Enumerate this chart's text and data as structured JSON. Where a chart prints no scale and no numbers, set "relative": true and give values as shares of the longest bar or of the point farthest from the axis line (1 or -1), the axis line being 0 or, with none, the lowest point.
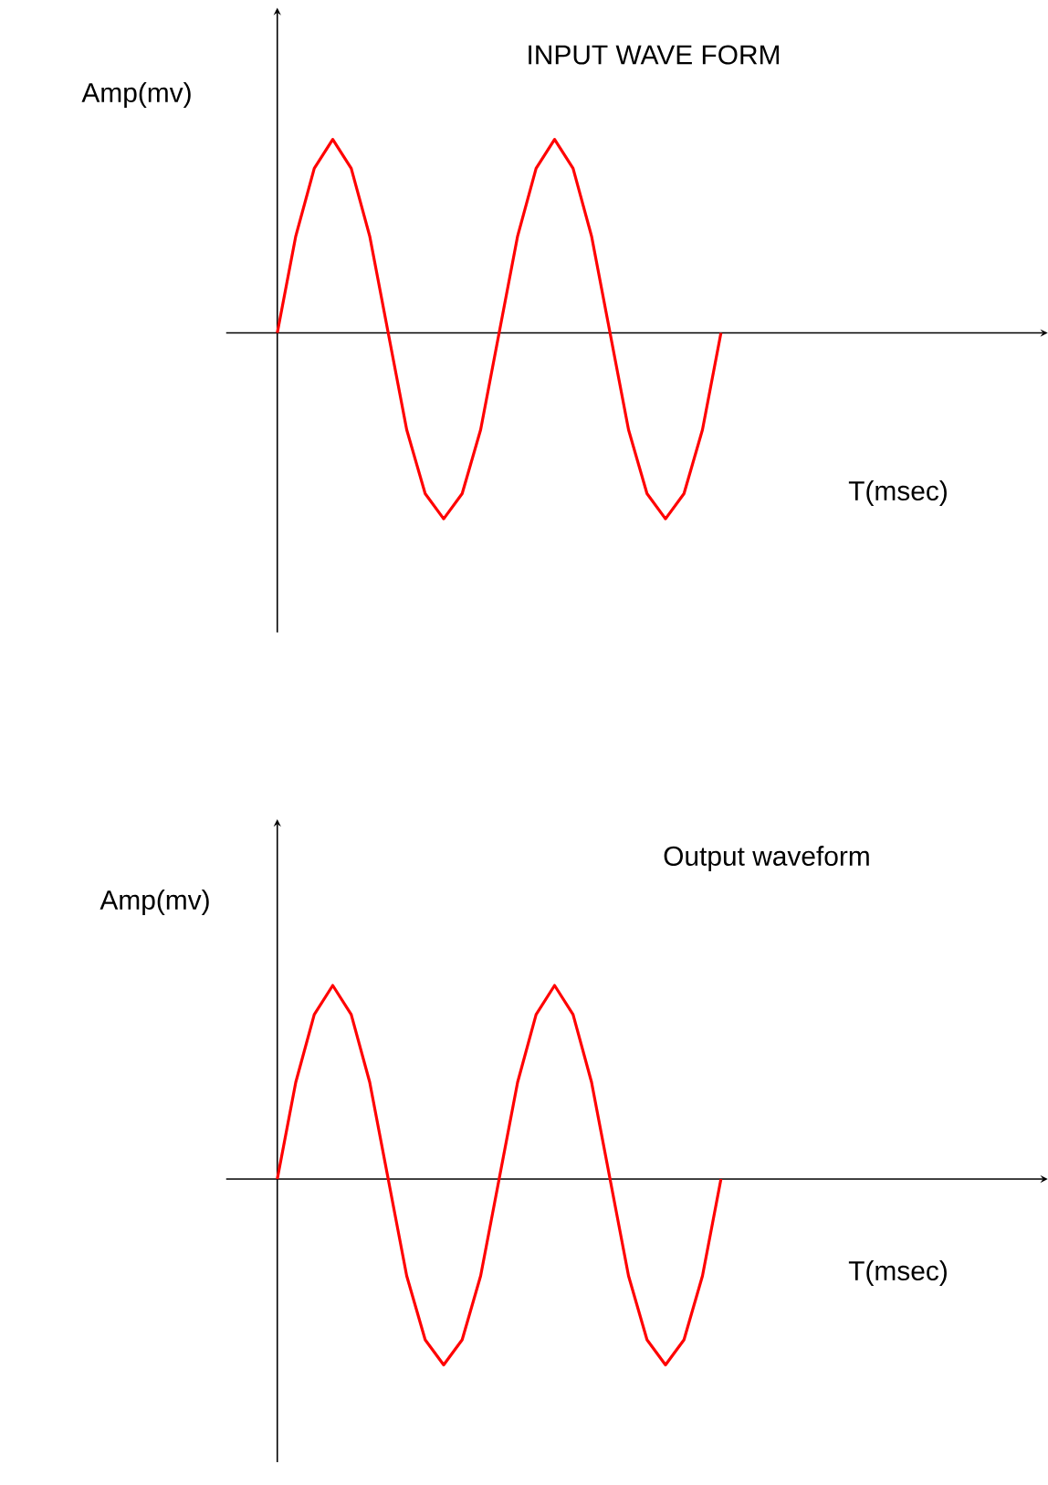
{
  "chart_data": [
    {
      "type": "line",
      "title": "INPUT WAVE FORM",
      "xlabel": "T(msec)",
      "ylabel": "Amp(mv)",
      "relative": true,
      "color": "#ff0000",
      "categories": [
        null,
        null,
        null,
        null,
        null,
        null,
        null,
        null,
        null,
        null,
        null,
        null,
        null,
        null,
        null,
        null,
        null,
        null,
        null,
        null,
        null,
        null,
        null,
        null,
        null
      ],
      "values": [
        0,
        0.5,
        0.85,
        1,
        0.85,
        0.5,
        0,
        -0.5,
        -0.83,
        -0.96,
        -0.83,
        -0.5,
        0,
        0.5,
        0.85,
        1,
        0.85,
        0.5,
        0,
        -0.5,
        -0.83,
        -0.96,
        -0.83,
        -0.5,
        0
      ]
    },
    {
      "type": "line",
      "title": "Output waveform",
      "xlabel": "T(msec)",
      "ylabel": "Amp(mv)",
      "relative": true,
      "color": "#ff0000",
      "categories": [
        null,
        null,
        null,
        null,
        null,
        null,
        null,
        null,
        null,
        null,
        null,
        null,
        null,
        null,
        null,
        null,
        null,
        null,
        null,
        null,
        null,
        null,
        null,
        null,
        null
      ],
      "values": [
        0,
        0.5,
        0.85,
        1,
        0.85,
        0.5,
        0,
        -0.5,
        -0.83,
        -0.96,
        -0.83,
        -0.5,
        0,
        0.5,
        0.85,
        1,
        0.85,
        0.5,
        0,
        -0.5,
        -0.83,
        -0.96,
        -0.83,
        -0.5,
        0
      ]
    }
  ]
}
